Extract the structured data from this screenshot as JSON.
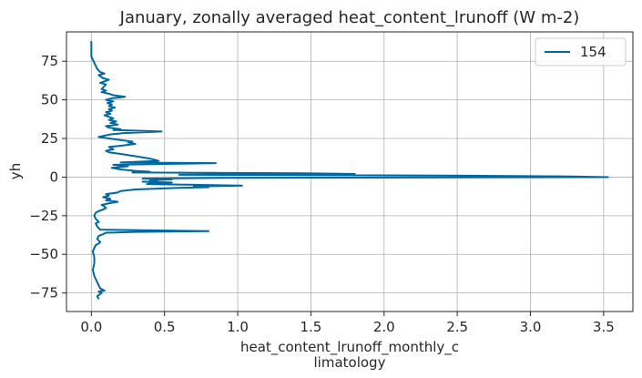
{
  "chart_data": {
    "type": "line",
    "title": "January, zonally averaged heat_content_lrunoff (W m-2)",
    "xlabel_line1": "heat_content_lrunoff_monthly_c",
    "xlabel_line2": "limatology",
    "ylabel": "yh",
    "xlim": [
      -0.17,
      3.7
    ],
    "ylim": [
      -87,
      94
    ],
    "xticks": [
      0.0,
      0.5,
      1.0,
      1.5,
      2.0,
      2.5,
      3.0,
      3.5
    ],
    "xtick_labels": [
      "0.0",
      "0.5",
      "1.0",
      "1.5",
      "2.0",
      "2.5",
      "3.0",
      "3.5"
    ],
    "yticks": [
      75,
      50,
      25,
      0,
      -25,
      -50,
      -75
    ],
    "ytick_labels": [
      "75",
      "50",
      "25",
      "0",
      "−25",
      "−50",
      "−75"
    ],
    "grid": true,
    "legend_position": "top-right",
    "series": [
      {
        "name": "154",
        "color": "#0068a0",
        "points": [
          [
            0.0,
            88
          ],
          [
            0.0,
            82
          ],
          [
            0.0,
            78
          ],
          [
            0.01,
            76
          ],
          [
            0.02,
            74
          ],
          [
            0.03,
            72
          ],
          [
            0.04,
            70
          ],
          [
            0.06,
            68
          ],
          [
            0.09,
            67
          ],
          [
            0.05,
            66
          ],
          [
            0.08,
            64
          ],
          [
            0.12,
            63
          ],
          [
            0.09,
            62
          ],
          [
            0.06,
            61
          ],
          [
            0.1,
            60
          ],
          [
            0.08,
            58
          ],
          [
            0.07,
            57
          ],
          [
            0.1,
            56
          ],
          [
            0.07,
            55
          ],
          [
            0.12,
            54
          ],
          [
            0.15,
            53
          ],
          [
            0.23,
            52
          ],
          [
            0.14,
            51
          ],
          [
            0.1,
            50
          ],
          [
            0.15,
            49
          ],
          [
            0.11,
            48
          ],
          [
            0.14,
            47
          ],
          [
            0.12,
            46
          ],
          [
            0.16,
            45
          ],
          [
            0.12,
            44
          ],
          [
            0.14,
            43
          ],
          [
            0.1,
            42
          ],
          [
            0.13,
            41
          ],
          [
            0.09,
            40
          ],
          [
            0.12,
            39
          ],
          [
            0.15,
            38
          ],
          [
            0.12,
            37
          ],
          [
            0.17,
            36
          ],
          [
            0.13,
            35
          ],
          [
            0.18,
            34
          ],
          [
            0.1,
            33
          ],
          [
            0.12,
            32
          ],
          [
            0.2,
            31
          ],
          [
            0.15,
            30.5
          ],
          [
            0.48,
            29.5
          ],
          [
            0.22,
            28.5
          ],
          [
            0.12,
            27.5
          ],
          [
            0.05,
            26
          ],
          [
            0.12,
            25
          ],
          [
            0.2,
            24
          ],
          [
            0.28,
            23
          ],
          [
            0.25,
            22.5
          ],
          [
            0.3,
            21.5
          ],
          [
            0.22,
            20.5
          ],
          [
            0.12,
            19.5
          ],
          [
            0.15,
            18
          ],
          [
            0.1,
            17
          ],
          [
            0.12,
            16
          ],
          [
            0.2,
            15
          ],
          [
            0.3,
            13.5
          ],
          [
            0.4,
            12
          ],
          [
            0.46,
            10.5
          ],
          [
            0.2,
            9.5
          ],
          [
            0.85,
            9
          ],
          [
            0.15,
            8
          ],
          [
            0.25,
            7
          ],
          [
            0.14,
            6
          ],
          [
            0.2,
            5
          ],
          [
            0.3,
            4
          ],
          [
            0.4,
            3.5
          ],
          [
            0.28,
            3
          ],
          [
            1.45,
            2.5
          ],
          [
            1.8,
            2
          ],
          [
            0.6,
            1.5
          ],
          [
            2.4,
            1
          ],
          [
            3.2,
            0.5
          ],
          [
            3.53,
            0
          ],
          [
            0.9,
            -0.5
          ],
          [
            0.35,
            -1
          ],
          [
            0.55,
            -1.5
          ],
          [
            0.4,
            -2
          ],
          [
            0.45,
            -2.5
          ],
          [
            0.35,
            -3
          ],
          [
            0.55,
            -3.5
          ],
          [
            0.42,
            -4
          ],
          [
            0.38,
            -4.5
          ],
          [
            0.7,
            -5
          ],
          [
            1.03,
            -5.5
          ],
          [
            0.7,
            -6
          ],
          [
            0.8,
            -6.5
          ],
          [
            0.6,
            -7
          ],
          [
            0.3,
            -8
          ],
          [
            0.2,
            -9
          ],
          [
            0.18,
            -10
          ],
          [
            0.1,
            -11
          ],
          [
            0.12,
            -12
          ],
          [
            0.08,
            -13
          ],
          [
            0.13,
            -14
          ],
          [
            0.1,
            -15
          ],
          [
            0.18,
            -16
          ],
          [
            0.12,
            -17
          ],
          [
            0.07,
            -18
          ],
          [
            0.09,
            -19
          ],
          [
            0.1,
            -20
          ],
          [
            0.08,
            -21
          ],
          [
            0.05,
            -22
          ],
          [
            0.03,
            -23
          ],
          [
            0.02,
            -25
          ],
          [
            0.03,
            -27
          ],
          [
            0.05,
            -29
          ],
          [
            0.03,
            -30
          ],
          [
            0.04,
            -32
          ],
          [
            0.05,
            -33
          ],
          [
            0.06,
            -34
          ],
          [
            0.8,
            -35
          ],
          [
            0.3,
            -35.5
          ],
          [
            0.1,
            -36
          ],
          [
            0.08,
            -37
          ],
          [
            0.05,
            -38
          ],
          [
            0.04,
            -40
          ],
          [
            0.06,
            -42
          ],
          [
            0.05,
            -43
          ],
          [
            0.03,
            -44
          ],
          [
            0.02,
            -46
          ],
          [
            0.01,
            -48
          ],
          [
            0.02,
            -52
          ],
          [
            0.02,
            -56
          ],
          [
            0.01,
            -60
          ],
          [
            0.02,
            -64
          ],
          [
            0.03,
            -66
          ],
          [
            0.04,
            -68
          ],
          [
            0.05,
            -70
          ],
          [
            0.06,
            -72
          ],
          [
            0.09,
            -73.5
          ],
          [
            0.05,
            -74
          ],
          [
            0.07,
            -75
          ],
          [
            0.04,
            -77
          ],
          [
            0.05,
            -79
          ]
        ]
      }
    ]
  }
}
